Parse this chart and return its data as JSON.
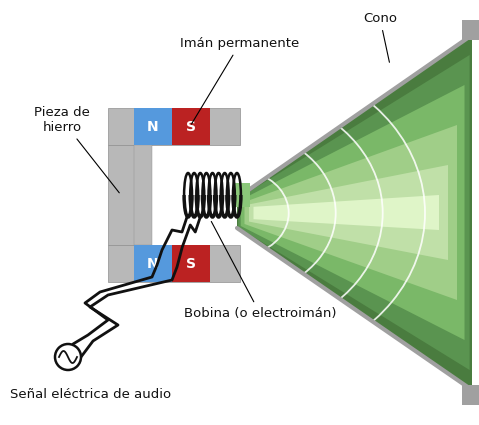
{
  "bg_color": "#ffffff",
  "gray_color": "#b8b8b8",
  "gray_dark": "#909090",
  "gray_frame": "#a0a0a0",
  "blue_color": "#5599dd",
  "red_color": "#bb2222",
  "green_outer": "#4a7c3f",
  "green_mid1": "#5a9450",
  "green_mid2": "#7ab868",
  "green_mid3": "#a0ce88",
  "green_mid4": "#c0e0a8",
  "green_center": "#dff5c8",
  "coil_color": "#111111",
  "text_color": "#111111",
  "label_iman": "Imán permanente",
  "label_pieza": "Pieza de\nhierro",
  "label_cono": "Cono",
  "label_bobina": "Bobina (o electroimán)",
  "label_senal": "Señal eléctrica de audio",
  "white_arc": "#ffffff"
}
